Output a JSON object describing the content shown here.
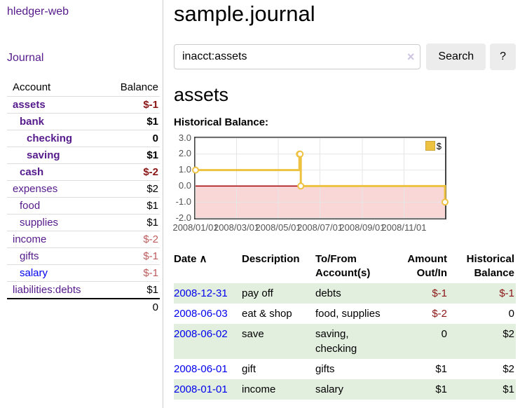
{
  "app": {
    "title": "hledger-web"
  },
  "sidebar": {
    "journal_label": "Journal",
    "accounts_table": {
      "headers": {
        "account": "Account",
        "balance": "Balance"
      },
      "rows": [
        {
          "name": "assets",
          "balance": "$-1"
        },
        {
          "name": "bank",
          "balance": "$1"
        },
        {
          "name": "checking",
          "balance": "0"
        },
        {
          "name": "saving",
          "balance": "$1"
        },
        {
          "name": "cash",
          "balance": "$-2"
        },
        {
          "name": "expenses",
          "balance": "$2"
        },
        {
          "name": "food",
          "balance": "$1"
        },
        {
          "name": "supplies",
          "balance": "$1"
        },
        {
          "name": "income",
          "balance": "$-2"
        },
        {
          "name": "gifts",
          "balance": "$-1"
        },
        {
          "name": "salary",
          "balance": "$-1"
        },
        {
          "name": "liabilities:debts",
          "balance": "$1"
        }
      ],
      "total": "0"
    }
  },
  "header": {
    "title": "sample.journal"
  },
  "search": {
    "value": "inacct:assets",
    "button_label": "Search",
    "help_label": "?"
  },
  "icons": {
    "clear": "×",
    "sort_ascending": "∧"
  },
  "account_page": {
    "title": "assets",
    "chart_heading": "Historical Balance:"
  },
  "chart_data": {
    "type": "line",
    "step": true,
    "title": "Historical Balance:",
    "series": [
      {
        "name": "$",
        "color": "#edc240",
        "points": [
          [
            "2008-01-01",
            1
          ],
          [
            "2008-06-01",
            2
          ],
          [
            "2008-06-02",
            2
          ],
          [
            "2008-06-03",
            0
          ],
          [
            "2008-12-31",
            -1
          ]
        ]
      }
    ],
    "x_range": [
      "2008-01-01",
      "2008-12-31"
    ],
    "ylim": [
      -2.0,
      3.0
    ],
    "y_ticks": [
      {
        "value": 3,
        "label": "3.0"
      },
      {
        "value": 2,
        "label": "2.0"
      },
      {
        "value": 1,
        "label": "1.0"
      },
      {
        "value": 0,
        "label": "0.0"
      },
      {
        "value": -1,
        "label": "-1.0"
      },
      {
        "value": -2,
        "label": "-2.0"
      }
    ],
    "x_ticks": [
      {
        "date": "2008-01-01",
        "label": "2008/01/01"
      },
      {
        "date": "2008-03-01",
        "label": "2008/03/01"
      },
      {
        "date": "2008-05-01",
        "label": "2008/05/01"
      },
      {
        "date": "2008-07-01",
        "label": "2008/07/01"
      },
      {
        "date": "2008-09-01",
        "label": "2008/09/01"
      },
      {
        "date": "2008-11-01",
        "label": "2008/11/01"
      }
    ],
    "grid": true,
    "grid_color": "#e6e6e6",
    "negative_region_color": "#f9d7d7",
    "zero_line_color": "#a40000",
    "legend_position": "top-right"
  },
  "register": {
    "headers": {
      "date": "Date",
      "description": "Description",
      "accounts": "To/From Account(s)",
      "amount": "Amount Out/In",
      "balance": "Historical Balance"
    },
    "rows": [
      {
        "date": "2008-12-31",
        "description": "pay off",
        "accounts": "debts",
        "amount": "$-1",
        "balance": "$-1"
      },
      {
        "date": "2008-06-03",
        "description": "eat & shop",
        "accounts": "food, supplies",
        "amount": "$-2",
        "balance": "0"
      },
      {
        "date": "2008-06-02",
        "description": "save",
        "accounts": "saving, checking",
        "amount": "0",
        "balance": "$2"
      },
      {
        "date": "2008-06-01",
        "description": "gift",
        "accounts": "gifts",
        "amount": "$1",
        "balance": "$2"
      },
      {
        "date": "2008-01-01",
        "description": "income",
        "accounts": "salary",
        "amount": "$1",
        "balance": "$1"
      }
    ]
  },
  "colors": {
    "link_purple": "#551a8b",
    "link_blue": "#0000ee",
    "negative_strong": "#8b1515",
    "negative_soft": "#bf5b5b",
    "row_green": "#e2eede",
    "chart_line": "#edc240"
  }
}
